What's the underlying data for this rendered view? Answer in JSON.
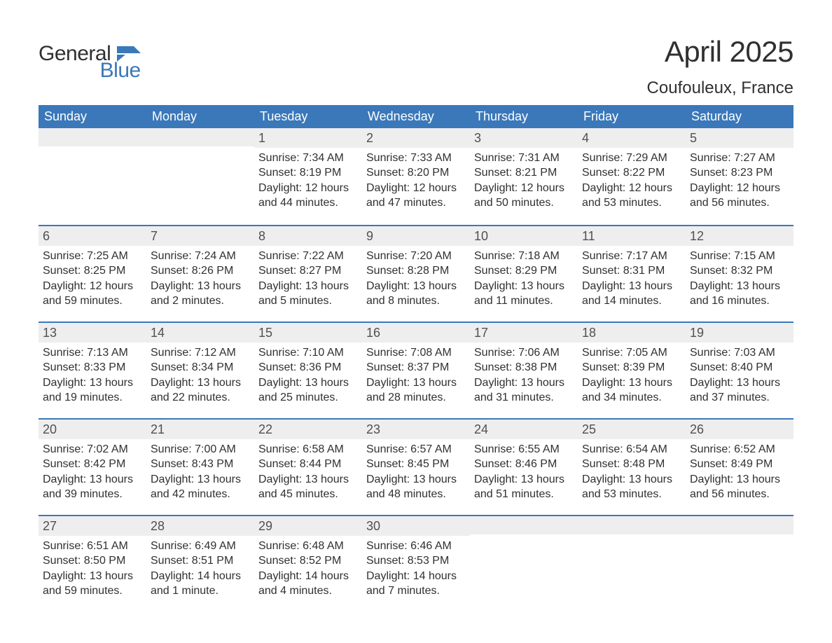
{
  "logo": {
    "general": "General",
    "blue": "Blue"
  },
  "title": "April 2025",
  "location": "Coufouleux, France",
  "colors": {
    "header_bg": "#3a78b9",
    "header_text": "#ffffff",
    "date_bg": "#eeeeee",
    "date_text": "#505050",
    "body_text": "#303030",
    "row_border": "#3a78b9",
    "page_bg": "#ffffff"
  },
  "typography": {
    "title_fontsize": 42,
    "location_fontsize": 24,
    "dayheader_fontsize": 18,
    "date_fontsize": 18,
    "body_fontsize": 16,
    "logo_fontsize": 30
  },
  "day_names": [
    "Sunday",
    "Monday",
    "Tuesday",
    "Wednesday",
    "Thursday",
    "Friday",
    "Saturday"
  ],
  "weeks": [
    [
      {
        "date": "",
        "sunrise": "",
        "sunset": "",
        "daylight": ""
      },
      {
        "date": "",
        "sunrise": "",
        "sunset": "",
        "daylight": ""
      },
      {
        "date": "1",
        "sunrise": "Sunrise: 7:34 AM",
        "sunset": "Sunset: 8:19 PM",
        "daylight": "Daylight: 12 hours and 44 minutes."
      },
      {
        "date": "2",
        "sunrise": "Sunrise: 7:33 AM",
        "sunset": "Sunset: 8:20 PM",
        "daylight": "Daylight: 12 hours and 47 minutes."
      },
      {
        "date": "3",
        "sunrise": "Sunrise: 7:31 AM",
        "sunset": "Sunset: 8:21 PM",
        "daylight": "Daylight: 12 hours and 50 minutes."
      },
      {
        "date": "4",
        "sunrise": "Sunrise: 7:29 AM",
        "sunset": "Sunset: 8:22 PM",
        "daylight": "Daylight: 12 hours and 53 minutes."
      },
      {
        "date": "5",
        "sunrise": "Sunrise: 7:27 AM",
        "sunset": "Sunset: 8:23 PM",
        "daylight": "Daylight: 12 hours and 56 minutes."
      }
    ],
    [
      {
        "date": "6",
        "sunrise": "Sunrise: 7:25 AM",
        "sunset": "Sunset: 8:25 PM",
        "daylight": "Daylight: 12 hours and 59 minutes."
      },
      {
        "date": "7",
        "sunrise": "Sunrise: 7:24 AM",
        "sunset": "Sunset: 8:26 PM",
        "daylight": "Daylight: 13 hours and 2 minutes."
      },
      {
        "date": "8",
        "sunrise": "Sunrise: 7:22 AM",
        "sunset": "Sunset: 8:27 PM",
        "daylight": "Daylight: 13 hours and 5 minutes."
      },
      {
        "date": "9",
        "sunrise": "Sunrise: 7:20 AM",
        "sunset": "Sunset: 8:28 PM",
        "daylight": "Daylight: 13 hours and 8 minutes."
      },
      {
        "date": "10",
        "sunrise": "Sunrise: 7:18 AM",
        "sunset": "Sunset: 8:29 PM",
        "daylight": "Daylight: 13 hours and 11 minutes."
      },
      {
        "date": "11",
        "sunrise": "Sunrise: 7:17 AM",
        "sunset": "Sunset: 8:31 PM",
        "daylight": "Daylight: 13 hours and 14 minutes."
      },
      {
        "date": "12",
        "sunrise": "Sunrise: 7:15 AM",
        "sunset": "Sunset: 8:32 PM",
        "daylight": "Daylight: 13 hours and 16 minutes."
      }
    ],
    [
      {
        "date": "13",
        "sunrise": "Sunrise: 7:13 AM",
        "sunset": "Sunset: 8:33 PM",
        "daylight": "Daylight: 13 hours and 19 minutes."
      },
      {
        "date": "14",
        "sunrise": "Sunrise: 7:12 AM",
        "sunset": "Sunset: 8:34 PM",
        "daylight": "Daylight: 13 hours and 22 minutes."
      },
      {
        "date": "15",
        "sunrise": "Sunrise: 7:10 AM",
        "sunset": "Sunset: 8:36 PM",
        "daylight": "Daylight: 13 hours and 25 minutes."
      },
      {
        "date": "16",
        "sunrise": "Sunrise: 7:08 AM",
        "sunset": "Sunset: 8:37 PM",
        "daylight": "Daylight: 13 hours and 28 minutes."
      },
      {
        "date": "17",
        "sunrise": "Sunrise: 7:06 AM",
        "sunset": "Sunset: 8:38 PM",
        "daylight": "Daylight: 13 hours and 31 minutes."
      },
      {
        "date": "18",
        "sunrise": "Sunrise: 7:05 AM",
        "sunset": "Sunset: 8:39 PM",
        "daylight": "Daylight: 13 hours and 34 minutes."
      },
      {
        "date": "19",
        "sunrise": "Sunrise: 7:03 AM",
        "sunset": "Sunset: 8:40 PM",
        "daylight": "Daylight: 13 hours and 37 minutes."
      }
    ],
    [
      {
        "date": "20",
        "sunrise": "Sunrise: 7:02 AM",
        "sunset": "Sunset: 8:42 PM",
        "daylight": "Daylight: 13 hours and 39 minutes."
      },
      {
        "date": "21",
        "sunrise": "Sunrise: 7:00 AM",
        "sunset": "Sunset: 8:43 PM",
        "daylight": "Daylight: 13 hours and 42 minutes."
      },
      {
        "date": "22",
        "sunrise": "Sunrise: 6:58 AM",
        "sunset": "Sunset: 8:44 PM",
        "daylight": "Daylight: 13 hours and 45 minutes."
      },
      {
        "date": "23",
        "sunrise": "Sunrise: 6:57 AM",
        "sunset": "Sunset: 8:45 PM",
        "daylight": "Daylight: 13 hours and 48 minutes."
      },
      {
        "date": "24",
        "sunrise": "Sunrise: 6:55 AM",
        "sunset": "Sunset: 8:46 PM",
        "daylight": "Daylight: 13 hours and 51 minutes."
      },
      {
        "date": "25",
        "sunrise": "Sunrise: 6:54 AM",
        "sunset": "Sunset: 8:48 PM",
        "daylight": "Daylight: 13 hours and 53 minutes."
      },
      {
        "date": "26",
        "sunrise": "Sunrise: 6:52 AM",
        "sunset": "Sunset: 8:49 PM",
        "daylight": "Daylight: 13 hours and 56 minutes."
      }
    ],
    [
      {
        "date": "27",
        "sunrise": "Sunrise: 6:51 AM",
        "sunset": "Sunset: 8:50 PM",
        "daylight": "Daylight: 13 hours and 59 minutes."
      },
      {
        "date": "28",
        "sunrise": "Sunrise: 6:49 AM",
        "sunset": "Sunset: 8:51 PM",
        "daylight": "Daylight: 14 hours and 1 minute."
      },
      {
        "date": "29",
        "sunrise": "Sunrise: 6:48 AM",
        "sunset": "Sunset: 8:52 PM",
        "daylight": "Daylight: 14 hours and 4 minutes."
      },
      {
        "date": "30",
        "sunrise": "Sunrise: 6:46 AM",
        "sunset": "Sunset: 8:53 PM",
        "daylight": "Daylight: 14 hours and 7 minutes."
      },
      {
        "date": "",
        "sunrise": "",
        "sunset": "",
        "daylight": ""
      },
      {
        "date": "",
        "sunrise": "",
        "sunset": "",
        "daylight": ""
      },
      {
        "date": "",
        "sunrise": "",
        "sunset": "",
        "daylight": ""
      }
    ]
  ]
}
